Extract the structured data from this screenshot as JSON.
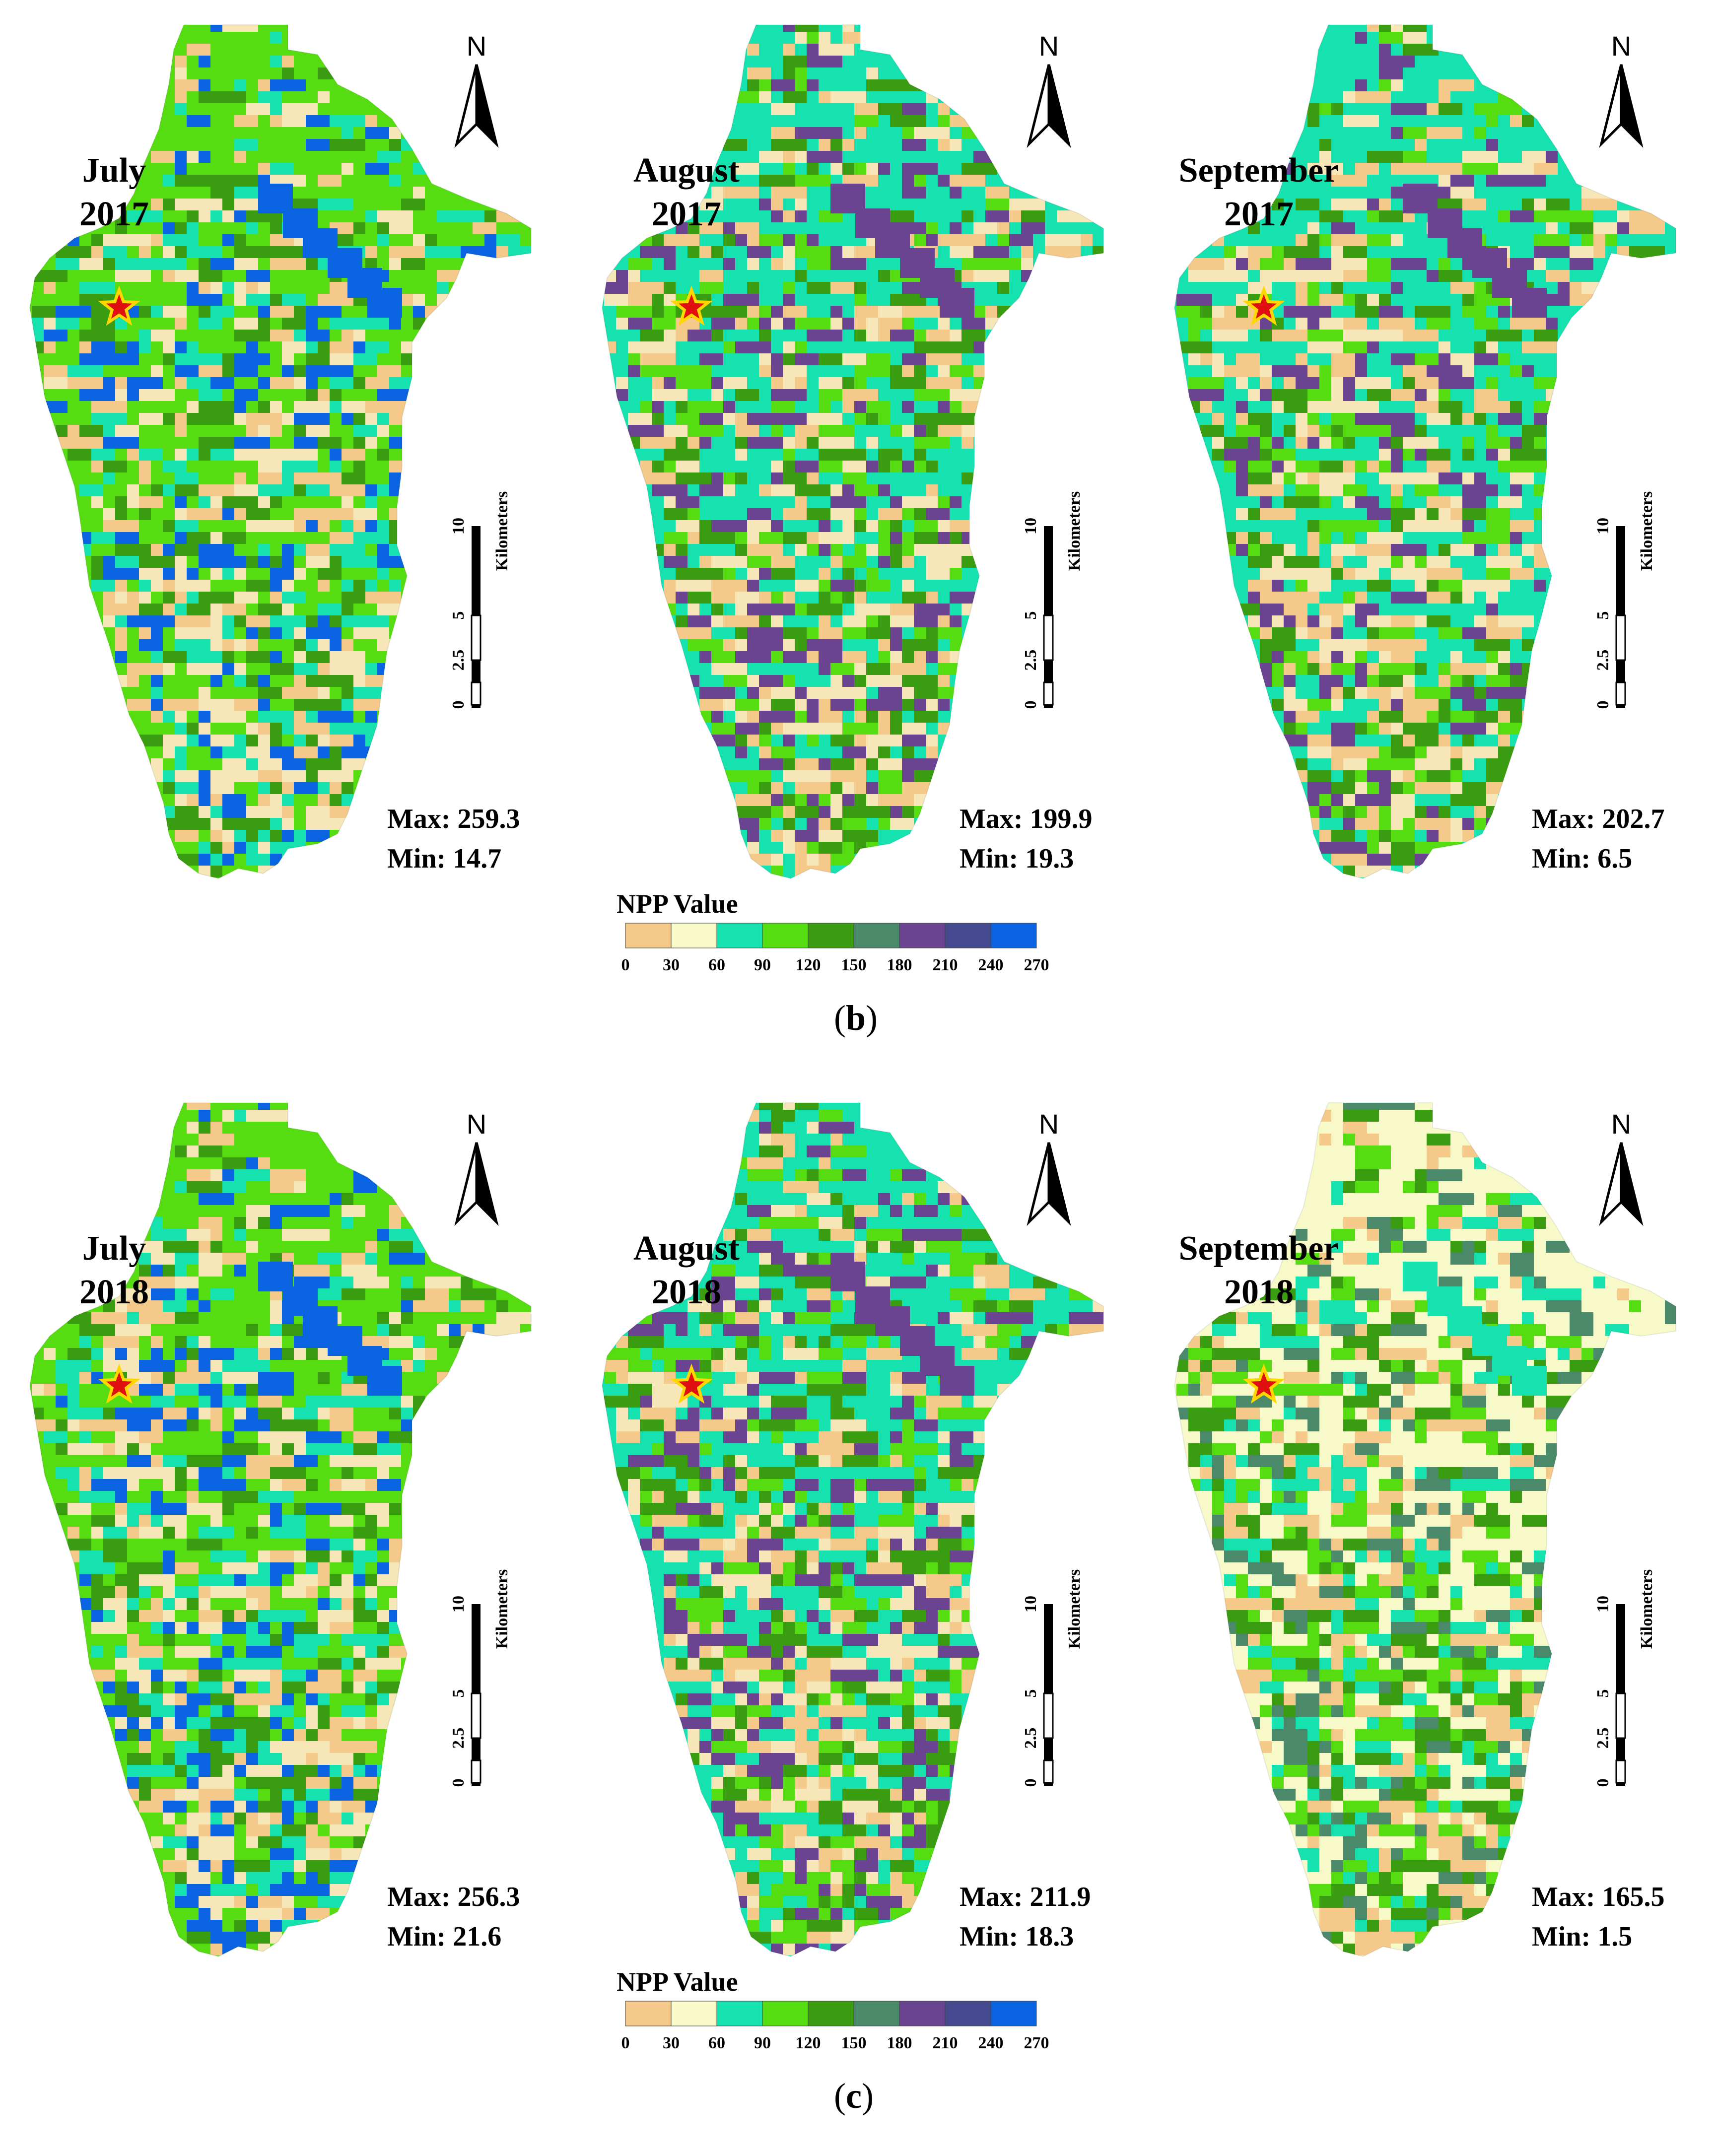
{
  "figures": [
    {
      "caption_letter": "b",
      "panels": [
        {
          "month": "July",
          "year": "2017",
          "max_label": "Max: 259.3",
          "min_label": "Min: 14.7",
          "base": "#55dd11",
          "palette": [
            "#55dd11",
            "#3a9c10",
            "#0a63e0",
            "#f7e6b8",
            "#f5c98a",
            "#16e2b0"
          ]
        },
        {
          "month": "August",
          "year": "2017",
          "max_label": "Max: 199.9",
          "min_label": "Min: 19.3",
          "base": "#16e2b0",
          "palette": [
            "#16e2b0",
            "#55dd11",
            "#6a4391",
            "#f7e6b8",
            "#f5c98a",
            "#3a9c10"
          ]
        },
        {
          "month": "September",
          "year": "2017",
          "max_label": "Max: 202.7",
          "min_label": "Min: 6.5",
          "base": "#16e2b0",
          "palette": [
            "#16e2b0",
            "#55dd11",
            "#6a4391",
            "#f5c98a",
            "#f7e6b8",
            "#3a9c10"
          ]
        }
      ],
      "legend": {
        "title": "NPP Value",
        "ticks": [
          "0",
          "30",
          "60",
          "90",
          "120",
          "150",
          "180",
          "210",
          "240",
          "270"
        ]
      }
    },
    {
      "caption_letter": "c",
      "panels": [
        {
          "month": "July",
          "year": "2018",
          "max_label": "Max: 256.3",
          "min_label": "Min: 21.6",
          "base": "#55dd11",
          "palette": [
            "#55dd11",
            "#3a9c10",
            "#0a63e0",
            "#f7e6b8",
            "#16e2b0",
            "#f5c98a"
          ]
        },
        {
          "month": "August",
          "year": "2018",
          "max_label": "Max: 211.9",
          "min_label": "Min: 18.3",
          "base": "#16e2b0",
          "palette": [
            "#16e2b0",
            "#55dd11",
            "#6a4391",
            "#f7e6b8",
            "#f5c98a",
            "#3a9c10"
          ]
        },
        {
          "month": "September",
          "year": "2018",
          "max_label": "Max: 165.5",
          "min_label": "Min: 1.5",
          "base": "#f7f9c8",
          "palette": [
            "#f7f9c8",
            "#f5c98a",
            "#16e2b0",
            "#55dd11",
            "#3a9c10",
            "#4a8a6a"
          ]
        }
      ],
      "legend": {
        "title": "NPP Value",
        "ticks": [
          "0",
          "30",
          "60",
          "90",
          "120",
          "150",
          "180",
          "210",
          "240",
          "270"
        ]
      }
    }
  ],
  "legend_colors": [
    "#f5c98a",
    "#f7f9c8",
    "#16e2b0",
    "#55dd11",
    "#3a9c10",
    "#4a8a6a",
    "#6a4391",
    "#454a8e",
    "#0a63e0"
  ],
  "north_label": "N",
  "scalebar": {
    "unit": "Kilometers",
    "ticks": [
      "0",
      "2.5",
      "5",
      "10"
    ]
  },
  "star_color": "#e01010",
  "star_outline": "#ffd700"
}
